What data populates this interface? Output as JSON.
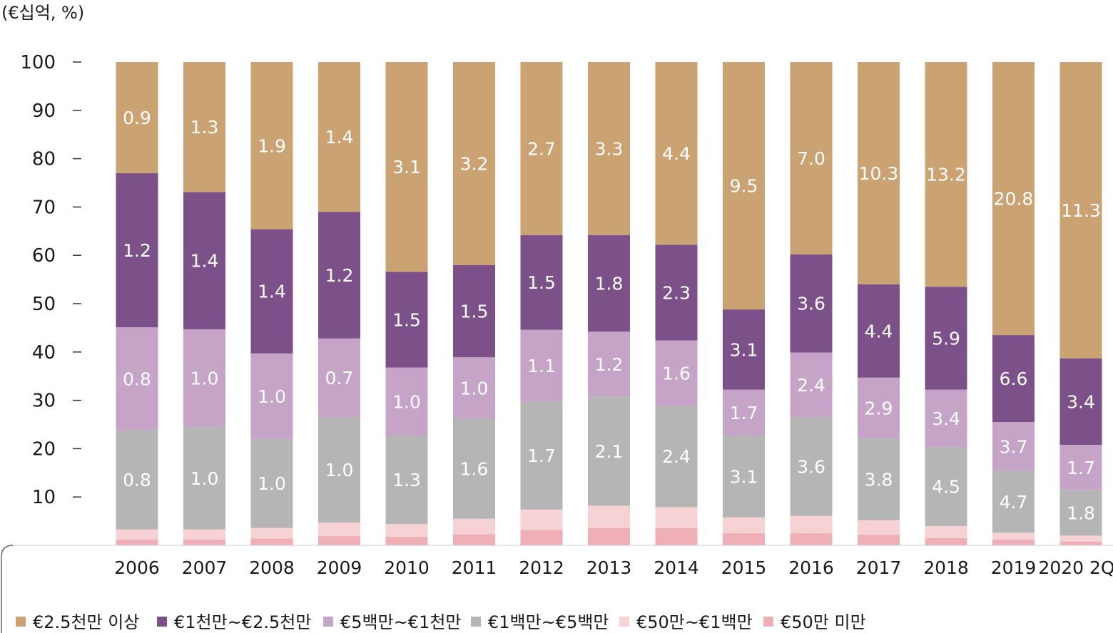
{
  "unit_label": "(€십억, %)",
  "chart_data": {
    "type": "bar",
    "stacked": true,
    "ylim": [
      0,
      100
    ],
    "yticks": [
      10,
      20,
      30,
      40,
      50,
      60,
      70,
      80,
      90,
      100
    ],
    "categories": [
      "2006",
      "2007",
      "2008",
      "2009",
      "2010",
      "2011",
      "2012",
      "2013",
      "2014",
      "2015",
      "2016",
      "2017",
      "2018",
      "2019",
      "2020 2Q"
    ],
    "series": [
      {
        "name": "€50만 미만",
        "color": "#EEB0B6",
        "values": [
          1.2,
          1.2,
          1.4,
          1.9,
          1.8,
          2.3,
          3.2,
          3.6,
          3.6,
          2.5,
          2.5,
          2.2,
          1.5,
          1.2,
          0.8
        ],
        "labels": [
          "",
          "",
          "",
          "",
          "",
          "",
          "",
          "",
          "",
          "",
          "",
          "",
          "",
          "",
          ""
        ]
      },
      {
        "name": "€50만~€1백만",
        "color": "#F6D2D5",
        "values": [
          2.1,
          2.1,
          2.2,
          2.8,
          2.6,
          3.2,
          4.2,
          4.6,
          4.3,
          3.3,
          3.6,
          3.0,
          2.5,
          1.4,
          1.2
        ],
        "labels": [
          "",
          "",
          "",
          "",
          "",
          "",
          "",
          "",
          "",
          "",
          "",
          "",
          "",
          "",
          ""
        ]
      },
      {
        "name": "€1백만~€5백만",
        "color": "#B4B5B4",
        "values": [
          20.5,
          21.2,
          18.4,
          21.8,
          18.3,
          20.7,
          22.3,
          22.6,
          21.0,
          16.9,
          20.4,
          16.9,
          16.3,
          12.8,
          9.4
        ],
        "labels": [
          "0.8",
          "1.0",
          "1.0",
          "1.0",
          "1.3",
          "1.6",
          "1.7",
          "2.1",
          "2.4",
          "3.1",
          "3.6",
          "3.8",
          "4.5",
          "4.7",
          "1.8"
        ]
      },
      {
        "name": "€5백만~€1천만",
        "color": "#C6A4C7",
        "values": [
          21.3,
          20.2,
          17.7,
          16.3,
          14.1,
          12.7,
          14.9,
          13.4,
          13.5,
          9.5,
          13.4,
          12.6,
          11.9,
          10.1,
          9.4
        ],
        "labels": [
          "0.8",
          "1.0",
          "1.0",
          "0.7",
          "1.0",
          "1.0",
          "1.1",
          "1.2",
          "1.6",
          "1.7",
          "2.4",
          "2.9",
          "3.4",
          "3.7",
          "1.7"
        ]
      },
      {
        "name": "€1천만~€2.5천만",
        "color": "#7C5089",
        "values": [
          31.9,
          28.4,
          25.7,
          26.2,
          19.8,
          19.1,
          19.6,
          20.0,
          19.8,
          16.6,
          20.3,
          19.3,
          21.3,
          18.0,
          17.9
        ],
        "labels": [
          "1.2",
          "1.4",
          "1.4",
          "1.2",
          "1.5",
          "1.5",
          "1.5",
          "1.8",
          "2.3",
          "3.1",
          "3.6",
          "4.4",
          "5.9",
          "6.6",
          "3.4"
        ]
      },
      {
        "name": "€2.5천만 이상",
        "color": "#CBA271",
        "values": [
          23.0,
          26.9,
          34.6,
          31.0,
          43.4,
          42.0,
          35.8,
          35.8,
          37.8,
          51.2,
          39.8,
          46.0,
          46.5,
          56.5,
          61.3
        ],
        "labels": [
          "0.9",
          "1.3",
          "1.9",
          "1.4",
          "3.1",
          "3.2",
          "2.7",
          "3.3",
          "4.4",
          "9.5",
          "7.0",
          "10.3",
          "13.2",
          "20.8",
          "11.3"
        ]
      }
    ]
  }
}
